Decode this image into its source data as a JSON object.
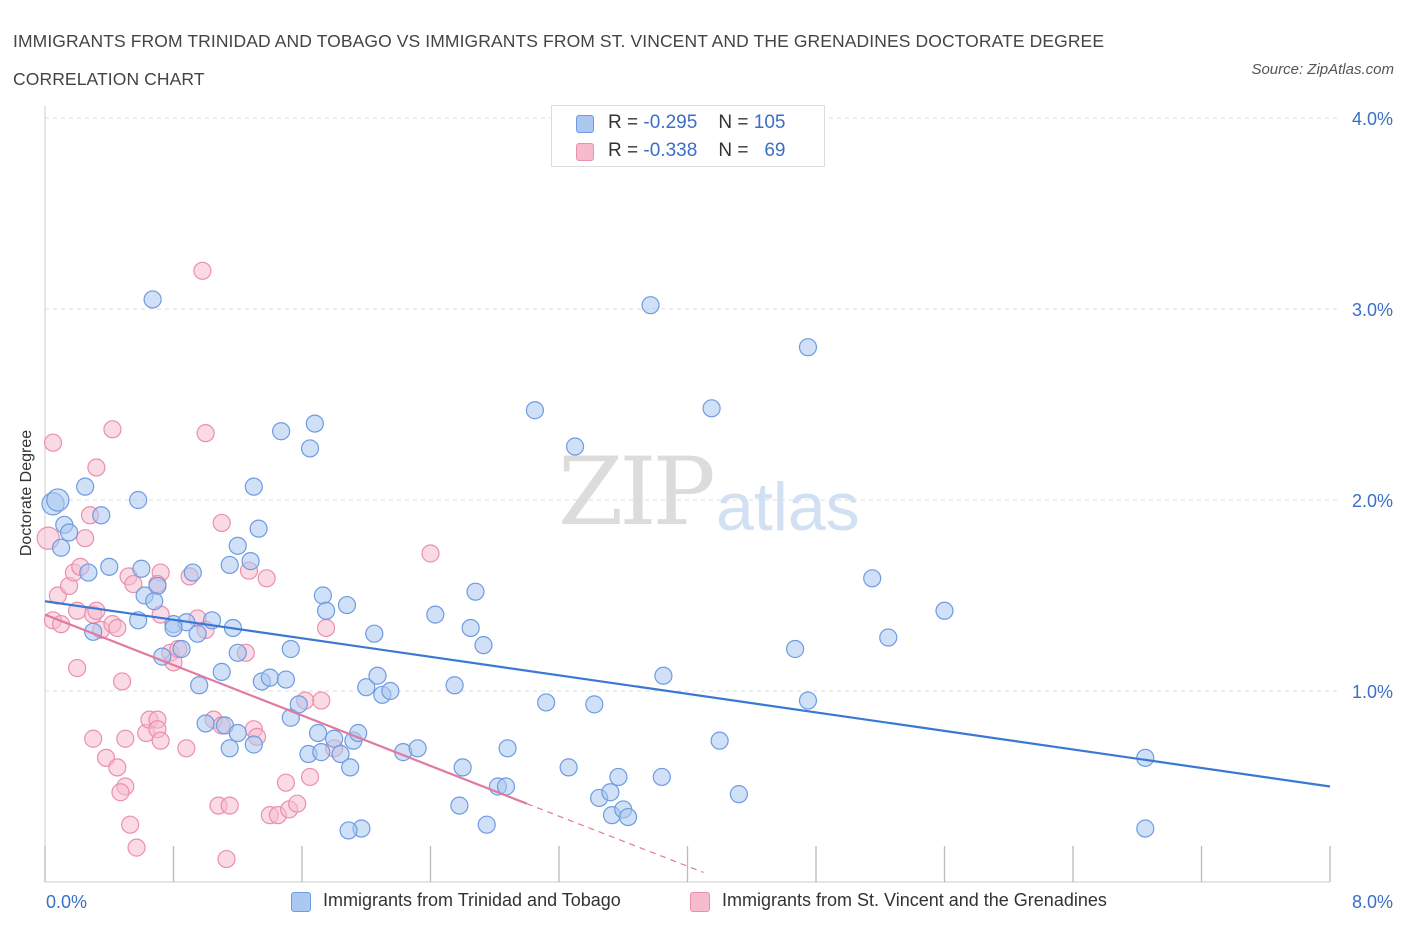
{
  "header": {
    "title": "IMMIGRANTS FROM TRINIDAD AND TOBAGO VS IMMIGRANTS FROM ST. VINCENT AND THE GRENADINES DOCTORATE DEGREE CORRELATION CHART",
    "source": "Source: ZipAtlas.com"
  },
  "watermark": {
    "zip": "ZIP",
    "atlas": "atlas"
  },
  "legend": {
    "r_label": "R =",
    "n_label": "N =",
    "series1": {
      "r": "-0.295",
      "n": "105"
    },
    "series2": {
      "r": "-0.338",
      "n": "69"
    }
  },
  "colors": {
    "blue_fill": "#aac8f0",
    "blue_stroke": "#6f9be0",
    "blue_line": "#3a78d4",
    "pink_fill": "#f6bccd",
    "pink_stroke": "#ec8fab",
    "pink_line": "#e07aa0",
    "grid": "#dddddd",
    "tick_label": "#3a6fc8"
  },
  "chart_data": {
    "type": "scatter",
    "title": "IMMIGRANTS FROM TRINIDAD AND TOBAGO VS IMMIGRANTS FROM ST. VINCENT AND THE GRENADINES DOCTORATE DEGREE CORRELATION CHART",
    "xlabel": "",
    "ylabel": "Doctorate Degree",
    "xlim": [
      0,
      8
    ],
    "ylim": [
      0,
      4
    ],
    "x_tick_labels": [
      "0.0%",
      "8.0%"
    ],
    "y_tick_labels": [
      "1.0%",
      "2.0%",
      "3.0%",
      "4.0%"
    ],
    "y_ticks": [
      1,
      2,
      3,
      4
    ],
    "x_minor_ticks": [
      0,
      0.8,
      1.6,
      2.4,
      3.2,
      4.0,
      4.8,
      5.6,
      6.4,
      7.2,
      8.0
    ],
    "grid": true,
    "legend_position": "top-center",
    "series": [
      {
        "name": "Immigrants from Trinidad and Tobago",
        "color": "#aac8f0",
        "trend": {
          "x": [
            0,
            8
          ],
          "y": [
            1.47,
            0.5
          ]
        },
        "points": [
          [
            0.05,
            1.98,
            1.3
          ],
          [
            0.08,
            2.0,
            1.3
          ],
          [
            0.12,
            1.87,
            1
          ],
          [
            0.15,
            1.83,
            1
          ],
          [
            0.1,
            1.75,
            1
          ],
          [
            0.25,
            2.07,
            1
          ],
          [
            0.35,
            1.92,
            1
          ],
          [
            0.27,
            1.62,
            1
          ],
          [
            0.4,
            1.65,
            1
          ],
          [
            0.6,
            1.64,
            1
          ],
          [
            0.7,
            1.55,
            1
          ],
          [
            0.62,
            1.5,
            1
          ],
          [
            0.68,
            1.47,
            1
          ],
          [
            0.58,
            1.37,
            1
          ],
          [
            0.3,
            1.31,
            1
          ],
          [
            0.8,
            1.35,
            1
          ],
          [
            0.88,
            1.36,
            1
          ],
          [
            0.95,
            1.3,
            1
          ],
          [
            0.73,
            1.18,
            1
          ],
          [
            0.85,
            1.22,
            1
          ],
          [
            0.67,
            3.05,
            1
          ],
          [
            0.58,
            2.0,
            1
          ],
          [
            1.3,
            2.07,
            1
          ],
          [
            1.33,
            1.85,
            1
          ],
          [
            1.2,
            1.76,
            1
          ],
          [
            1.15,
            1.66,
            1
          ],
          [
            1.28,
            1.68,
            1
          ],
          [
            0.92,
            1.62,
            1
          ],
          [
            0.8,
            1.33,
            1
          ],
          [
            1.04,
            1.37,
            1
          ],
          [
            1.17,
            1.33,
            1
          ],
          [
            0.96,
            1.03,
            1
          ],
          [
            1.1,
            1.1,
            1
          ],
          [
            1.2,
            1.2,
            1
          ],
          [
            1.35,
            1.05,
            1
          ],
          [
            1.4,
            1.07,
            1
          ],
          [
            1.0,
            0.83,
            1
          ],
          [
            1.12,
            0.82,
            1
          ],
          [
            1.2,
            0.78,
            1
          ],
          [
            1.15,
            0.7,
            1
          ],
          [
            1.3,
            0.72,
            1
          ],
          [
            1.47,
            2.36,
            1
          ],
          [
            1.65,
            2.27,
            1
          ],
          [
            1.68,
            2.4,
            1
          ],
          [
            1.53,
            1.22,
            1
          ],
          [
            1.5,
            1.06,
            1
          ],
          [
            1.53,
            0.86,
            1
          ],
          [
            1.64,
            0.67,
            1
          ],
          [
            1.72,
            0.68,
            1
          ],
          [
            1.58,
            0.93,
            1
          ],
          [
            1.7,
            0.78,
            1
          ],
          [
            1.73,
            1.5,
            1
          ],
          [
            1.75,
            1.42,
            1
          ],
          [
            1.88,
            1.45,
            1
          ],
          [
            1.8,
            0.75,
            1
          ],
          [
            1.84,
            0.67,
            1
          ],
          [
            1.9,
            0.6,
            1
          ],
          [
            1.92,
            0.74,
            1
          ],
          [
            1.95,
            0.78,
            1
          ],
          [
            2.0,
            1.02,
            1
          ],
          [
            2.07,
            1.08,
            1
          ],
          [
            2.05,
            1.3,
            1
          ],
          [
            2.1,
            0.98,
            1
          ],
          [
            2.15,
            1.0,
            1
          ],
          [
            1.97,
            0.28,
            1
          ],
          [
            1.89,
            0.27,
            1
          ],
          [
            2.23,
            0.68,
            1
          ],
          [
            2.32,
            0.7,
            1
          ],
          [
            2.43,
            1.4,
            1
          ],
          [
            2.55,
            1.03,
            1
          ],
          [
            2.6,
            0.6,
            1
          ],
          [
            2.65,
            1.33,
            1
          ],
          [
            2.68,
            1.52,
            1
          ],
          [
            2.73,
            1.24,
            1
          ],
          [
            2.58,
            0.4,
            1
          ],
          [
            2.82,
            0.5,
            1
          ],
          [
            2.87,
            0.5,
            1
          ],
          [
            2.88,
            0.7,
            1
          ],
          [
            2.75,
            0.3,
            1
          ],
          [
            3.05,
            2.47,
            1
          ],
          [
            3.12,
            0.94,
            1
          ],
          [
            3.3,
            2.28,
            1
          ],
          [
            3.26,
            0.6,
            1
          ],
          [
            3.42,
            0.93,
            1
          ],
          [
            3.45,
            0.44,
            1
          ],
          [
            3.52,
            0.47,
            1
          ],
          [
            3.53,
            0.35,
            1
          ],
          [
            3.6,
            0.38,
            1
          ],
          [
            3.57,
            0.55,
            1
          ],
          [
            3.63,
            0.34,
            1
          ],
          [
            3.77,
            3.02,
            1
          ],
          [
            3.85,
            1.08,
            1
          ],
          [
            3.84,
            0.55,
            1
          ],
          [
            4.15,
            2.48,
            1
          ],
          [
            4.2,
            0.74,
            1
          ],
          [
            4.32,
            0.46,
            1
          ],
          [
            4.67,
            1.22,
            1
          ],
          [
            4.75,
            0.95,
            1
          ],
          [
            4.75,
            2.8,
            1
          ],
          [
            5.15,
            1.59,
            1
          ],
          [
            5.25,
            1.28,
            1
          ],
          [
            5.6,
            1.42,
            1
          ],
          [
            6.85,
            0.65,
            1
          ],
          [
            6.85,
            0.28,
            1
          ]
        ]
      },
      {
        "name": "Immigrants from St. Vincent and the Grenadines",
        "color": "#f6bccd",
        "trend": {
          "x": [
            0,
            3.0
          ],
          "y": [
            1.4,
            0.41
          ]
        },
        "trend_dashed": {
          "x": [
            3.0,
            4.1
          ],
          "y": [
            0.41,
            0.05
          ]
        },
        "points": [
          [
            0.02,
            1.8,
            1.3
          ],
          [
            0.05,
            2.3,
            1
          ],
          [
            0.08,
            1.5,
            1
          ],
          [
            0.05,
            1.37,
            1
          ],
          [
            0.1,
            1.35,
            1
          ],
          [
            0.15,
            1.55,
            1
          ],
          [
            0.2,
            1.42,
            1
          ],
          [
            0.18,
            1.62,
            1
          ],
          [
            0.22,
            1.65,
            1
          ],
          [
            0.28,
            1.92,
            1
          ],
          [
            0.25,
            1.8,
            1
          ],
          [
            0.3,
            1.4,
            1
          ],
          [
            0.35,
            1.32,
            1
          ],
          [
            0.32,
            1.42,
            1
          ],
          [
            0.42,
            1.35,
            1
          ],
          [
            0.45,
            1.33,
            1
          ],
          [
            0.2,
            1.12,
            1
          ],
          [
            0.32,
            2.17,
            1
          ],
          [
            0.42,
            2.37,
            1
          ],
          [
            0.52,
            1.6,
            1
          ],
          [
            0.55,
            1.56,
            1
          ],
          [
            0.48,
            1.05,
            1
          ],
          [
            0.38,
            0.65,
            1
          ],
          [
            0.3,
            0.75,
            1
          ],
          [
            0.45,
            0.6,
            1
          ],
          [
            0.5,
            0.5,
            1
          ],
          [
            0.47,
            0.47,
            1
          ],
          [
            0.53,
            0.3,
            1
          ],
          [
            0.57,
            0.18,
            1
          ],
          [
            0.5,
            0.75,
            1
          ],
          [
            0.63,
            0.78,
            1
          ],
          [
            0.65,
            0.85,
            1
          ],
          [
            0.7,
            0.85,
            1
          ],
          [
            0.7,
            0.8,
            1
          ],
          [
            0.72,
            0.74,
            1
          ],
          [
            0.78,
            1.2,
            1
          ],
          [
            0.8,
            1.15,
            1
          ],
          [
            0.83,
            1.22,
            1
          ],
          [
            0.9,
            1.6,
            1
          ],
          [
            0.95,
            1.38,
            1
          ],
          [
            1.0,
            1.32,
            1
          ],
          [
            0.88,
            0.7,
            1
          ],
          [
            0.72,
            1.62,
            1
          ],
          [
            0.7,
            1.56,
            1
          ],
          [
            0.72,
            1.4,
            1
          ],
          [
            0.98,
            3.2,
            1
          ],
          [
            1.0,
            2.35,
            1
          ],
          [
            1.1,
            1.88,
            1
          ],
          [
            1.05,
            0.85,
            1
          ],
          [
            1.1,
            0.82,
            1
          ],
          [
            1.08,
            0.4,
            1
          ],
          [
            1.15,
            0.4,
            1
          ],
          [
            1.13,
            0.12,
            1
          ],
          [
            1.25,
            1.2,
            1
          ],
          [
            1.27,
            1.63,
            1
          ],
          [
            1.3,
            0.8,
            1
          ],
          [
            1.32,
            0.76,
            1
          ],
          [
            1.38,
            1.59,
            1
          ],
          [
            1.4,
            0.35,
            1
          ],
          [
            1.45,
            0.35,
            1
          ],
          [
            1.52,
            0.38,
            1
          ],
          [
            1.57,
            0.41,
            1
          ],
          [
            1.5,
            0.52,
            1
          ],
          [
            1.62,
            0.95,
            1
          ],
          [
            1.65,
            0.55,
            1
          ],
          [
            1.72,
            0.95,
            1
          ],
          [
            1.75,
            1.33,
            1
          ],
          [
            1.8,
            0.7,
            1
          ],
          [
            2.4,
            1.72,
            1
          ]
        ]
      }
    ]
  }
}
